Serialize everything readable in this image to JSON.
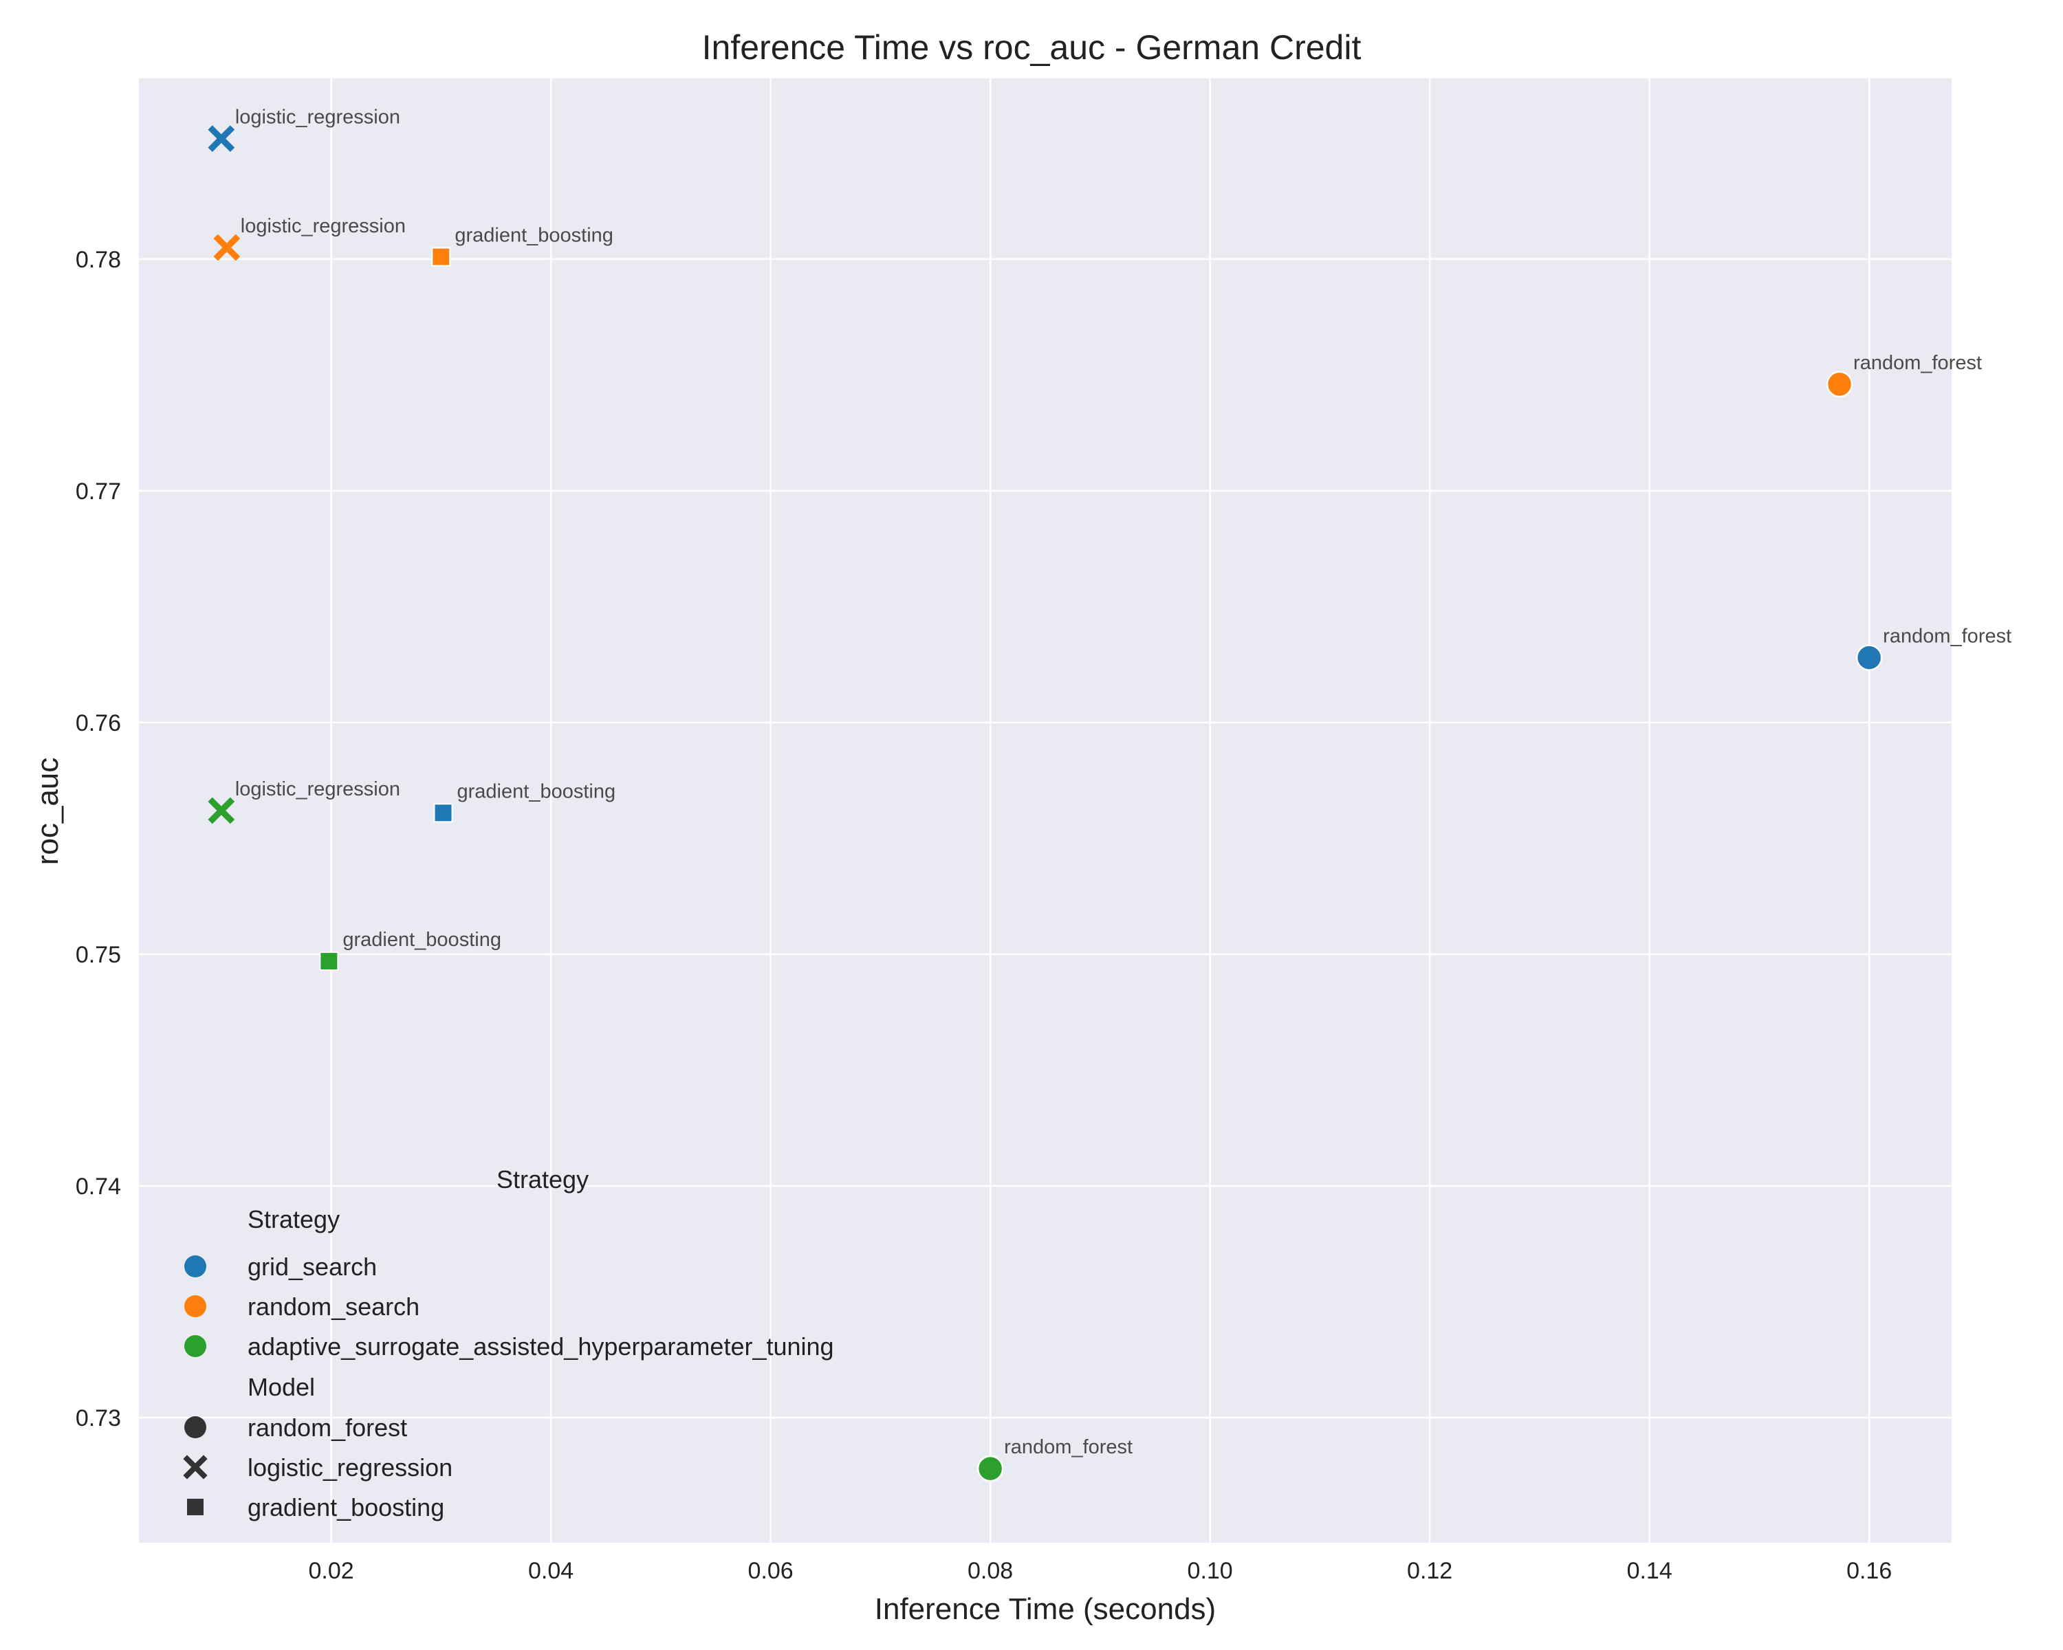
{
  "chart_data": {
    "type": "scatter",
    "title": "Inference Time vs roc_auc - German Credit",
    "xlabel": "Inference Time (seconds)",
    "ylabel": "roc_auc",
    "xlim": [
      0.0025,
      0.1675
    ],
    "ylim": [
      0.7246,
      0.7878
    ],
    "xticks": [
      0.02,
      0.04,
      0.06,
      0.08,
      0.1,
      0.12,
      0.14,
      0.16
    ],
    "xtick_labels": [
      "0.02",
      "0.04",
      "0.06",
      "0.08",
      "0.10",
      "0.12",
      "0.14",
      "0.16"
    ],
    "yticks": [
      0.73,
      0.74,
      0.75,
      0.76,
      0.77,
      0.78
    ],
    "ytick_labels": [
      "0.73",
      "0.74",
      "0.75",
      "0.76",
      "0.77",
      "0.78"
    ],
    "grid": true,
    "legend_placement": "lower-left",
    "strategies": [
      {
        "name": "grid_search",
        "color": "#1f77b4"
      },
      {
        "name": "random_search",
        "color": "#ff7f0e"
      },
      {
        "name": "adaptive_surrogate_assisted_hyperparameter_tuning",
        "color": "#2ca02c"
      }
    ],
    "models": [
      {
        "name": "random_forest",
        "marker": "circle"
      },
      {
        "name": "logistic_regression",
        "marker": "x"
      },
      {
        "name": "gradient_boosting",
        "marker": "square"
      }
    ],
    "points": [
      {
        "strategy": "grid_search",
        "model": "logistic_regression",
        "x": 0.01,
        "y": 0.7852,
        "label": "logistic_regression"
      },
      {
        "strategy": "random_search",
        "model": "logistic_regression",
        "x": 0.0105,
        "y": 0.7805,
        "label": "logistic_regression"
      },
      {
        "strategy": "random_search",
        "model": "gradient_boosting",
        "x": 0.03,
        "y": 0.7801,
        "label": "gradient_boosting"
      },
      {
        "strategy": "random_search",
        "model": "random_forest",
        "x": 0.1573,
        "y": 0.7746,
        "label": "random_forest"
      },
      {
        "strategy": "grid_search",
        "model": "random_forest",
        "x": 0.16,
        "y": 0.7628,
        "label": "random_forest"
      },
      {
        "strategy": "adaptive_surrogate_assisted_hyperparameter_tuning",
        "model": "logistic_regression",
        "x": 0.01,
        "y": 0.7562,
        "label": "logistic_regression"
      },
      {
        "strategy": "grid_search",
        "model": "gradient_boosting",
        "x": 0.0302,
        "y": 0.7561,
        "label": "gradient_boosting"
      },
      {
        "strategy": "adaptive_surrogate_assisted_hyperparameter_tuning",
        "model": "gradient_boosting",
        "x": 0.0198,
        "y": 0.7497,
        "label": "gradient_boosting"
      },
      {
        "strategy": "adaptive_surrogate_assisted_hyperparameter_tuning",
        "model": "random_forest",
        "x": 0.08,
        "y": 0.7278,
        "label": "random_forest"
      }
    ],
    "legend": {
      "outer_title": "Strategy",
      "strategy_header": "Strategy",
      "model_header": "Model"
    }
  }
}
